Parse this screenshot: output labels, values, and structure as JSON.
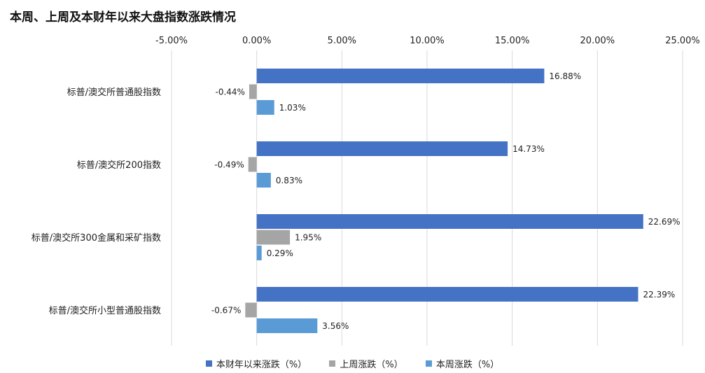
{
  "chart_data": {
    "type": "bar",
    "orientation": "horizontal",
    "title": "本周、上周及本财年以来大盘指数涨跌情况",
    "categories": [
      "标普/澳交所普通股指数",
      "标普/澳交所200指数",
      "标普/澳交所300金属和采矿指数",
      "标普/澳交所小型普通股指数"
    ],
    "series": [
      {
        "name": "本财年以来涨跌（%）",
        "color": "#4472C4",
        "values": [
          16.88,
          14.73,
          22.69,
          22.39
        ]
      },
      {
        "name": "上周涨跌（%）",
        "color": "#A5A5A5",
        "values": [
          -0.44,
          -0.49,
          1.95,
          -0.67
        ]
      },
      {
        "name": "本周涨跌（%）",
        "color": "#5B9BD5",
        "values": [
          1.03,
          0.83,
          0.29,
          3.56
        ]
      }
    ],
    "data_labels": [
      [
        "16.88%",
        "14.73%",
        "22.69%",
        "22.39%"
      ],
      [
        "-0.44%",
        "-0.49%",
        "1.95%",
        "-0.67%"
      ],
      [
        "1.03%",
        "0.83%",
        "0.29%",
        "3.56%"
      ]
    ],
    "xlim": [
      -5,
      25
    ],
    "xticks": [
      -5,
      0,
      5,
      10,
      15,
      20,
      25
    ],
    "xtick_labels": [
      "-5.00%",
      "0.00%",
      "5.00%",
      "10.00%",
      "15.00%",
      "20.00%",
      "25.00%"
    ],
    "x_axis_position": "top",
    "grid": true,
    "legend_position": "bottom"
  }
}
